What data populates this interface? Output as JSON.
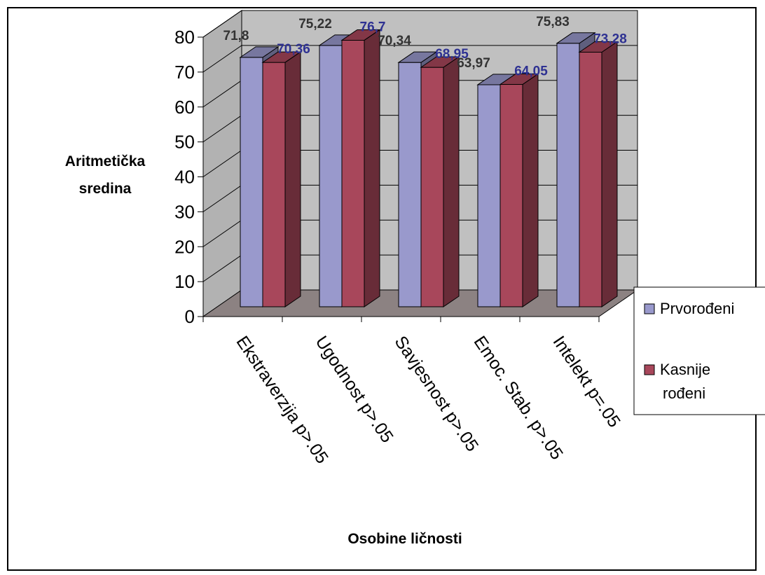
{
  "chart_data": {
    "type": "bar",
    "title": "",
    "xlabel": "Osobine ličnosti",
    "ylabel_lines": [
      "Aritmetička",
      "sredina"
    ],
    "categories": [
      "Ekstraverzija p>.05",
      "Ugodnost p>.05",
      "Savjesnost p>.05",
      "Emoc. Stab. p>.05",
      "Intelekt p=.05"
    ],
    "series": [
      {
        "name": "Prvorođeni",
        "values": [
          71.8,
          75.22,
          70.34,
          63.97,
          75.83
        ],
        "labels": [
          "71,8",
          "75,22",
          "70,34",
          "63,97",
          "75,83"
        ],
        "color": "#9999cc"
      },
      {
        "name": "Kasnije rođeni",
        "values": [
          70.36,
          76.7,
          68.95,
          64.05,
          73.28
        ],
        "labels": [
          "70,36",
          "76,7",
          "68,95",
          "64,05",
          "73,28"
        ],
        "color": "#a8475b"
      }
    ],
    "ylim": [
      0,
      80
    ],
    "yticks": [
      "0",
      "10",
      "20",
      "30",
      "40",
      "50",
      "60",
      "70",
      "80"
    ],
    "grid": true,
    "legend_position": "right",
    "legend_lines": [
      [
        "Prvorođeni"
      ],
      [
        "Kasnije",
        "rođeni"
      ]
    ]
  }
}
